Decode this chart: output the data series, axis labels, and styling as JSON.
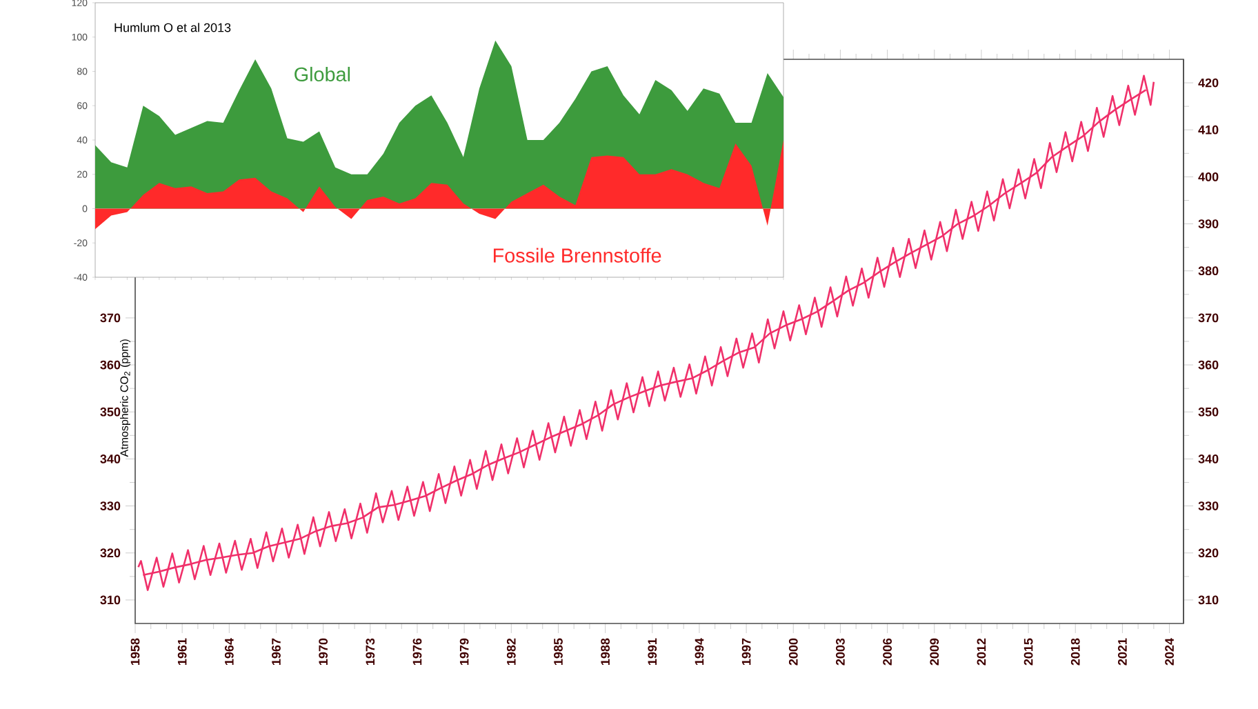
{
  "chart_data": [
    {
      "type": "line",
      "ylabel": "Atmospheric CO$_{2}$ (ppm)",
      "xlim": [
        1958,
        2024.9
      ],
      "xticks": [
        1958,
        1961,
        1964,
        1967,
        1970,
        1973,
        1976,
        1979,
        1982,
        1985,
        1988,
        1991,
        1994,
        1997,
        2000,
        2003,
        2006,
        2009,
        2012,
        2015,
        2018,
        2021,
        2024
      ],
      "ylim": [
        305,
        425
      ],
      "yticks": [
        310,
        320,
        330,
        340,
        350,
        360,
        370
      ],
      "y2lim": [
        305,
        425
      ],
      "y2ticks": [
        310,
        320,
        330,
        340,
        350,
        360,
        370,
        380,
        390,
        400,
        410,
        420
      ],
      "series": [
        {
          "color": "#f0306a",
          "x": [
            1958.2,
            1958.37,
            1958.8,
            1959.37,
            1959.8,
            1960.37,
            1960.8,
            1961.37,
            1961.8,
            1962.37,
            1962.8,
            1963.37,
            1963.8,
            1964.37,
            1964.8,
            1965.37,
            1965.8,
            1966.37,
            1966.8,
            1967.37,
            1967.8,
            1968.37,
            1968.8,
            1969.37,
            1969.8,
            1970.37,
            1970.8,
            1971.37,
            1971.8,
            1972.37,
            1972.8,
            1973.37,
            1973.8,
            1974.37,
            1974.8,
            1975.37,
            1975.8,
            1976.37,
            1976.8,
            1977.37,
            1977.8,
            1978.37,
            1978.8,
            1979.37,
            1979.8,
            1980.37,
            1980.8,
            1981.37,
            1981.8,
            1982.37,
            1982.8,
            1983.37,
            1983.8,
            1984.37,
            1984.8,
            1985.37,
            1985.8,
            1986.37,
            1986.8,
            1987.37,
            1987.8,
            1988.37,
            1988.8,
            1989.37,
            1989.8,
            1990.37,
            1990.8,
            1991.37,
            1991.8,
            1992.37,
            1992.8,
            1993.37,
            1993.8,
            1994.37,
            1994.8,
            1995.37,
            1995.8,
            1996.37,
            1996.8,
            1997.37,
            1997.8,
            1998.37,
            1998.8,
            1999.37,
            1999.8,
            2000.37,
            2000.8,
            2001.37,
            2001.8,
            2002.37,
            2002.8,
            2003.37,
            2003.8,
            2004.37,
            2004.8,
            2005.37,
            2005.8,
            2006.37,
            2006.8,
            2007.37,
            2007.8,
            2008.37,
            2008.8,
            2009.37,
            2009.8,
            2010.37,
            2010.8,
            2011.37,
            2011.8,
            2012.37,
            2012.8,
            2013.37,
            2013.8,
            2014.37,
            2014.8,
            2015.37,
            2015.8,
            2016.37,
            2016.8,
            2017.37,
            2017.8,
            2018.37,
            2018.8,
            2019.37,
            2019.8,
            2020.37,
            2020.8,
            2021.37,
            2021.8,
            2022.37,
            2022.8,
            2023.0
          ],
          "values": [
            317.0,
            318.3,
            312.1,
            319.0,
            312.8,
            319.9,
            313.7,
            320.6,
            314.4,
            321.5,
            315.3,
            322.0,
            315.8,
            322.6,
            316.4,
            323.0,
            316.8,
            324.4,
            318.2,
            325.2,
            319.0,
            326.0,
            319.8,
            327.6,
            321.4,
            328.7,
            322.5,
            329.3,
            323.1,
            330.5,
            324.3,
            332.7,
            326.5,
            333.2,
            327.0,
            334.1,
            327.9,
            335.1,
            328.9,
            336.8,
            330.6,
            338.4,
            332.2,
            339.8,
            333.6,
            341.7,
            335.5,
            343.1,
            336.9,
            344.4,
            338.2,
            346.0,
            339.8,
            347.6,
            341.4,
            349.0,
            342.8,
            350.4,
            344.2,
            352.2,
            346.0,
            354.6,
            348.4,
            356.1,
            349.9,
            357.4,
            351.2,
            358.6,
            352.4,
            359.4,
            353.2,
            360.1,
            353.9,
            361.8,
            355.6,
            363.8,
            357.6,
            365.6,
            359.4,
            366.7,
            360.5,
            369.7,
            363.5,
            371.4,
            365.2,
            372.7,
            366.5,
            374.3,
            368.1,
            376.5,
            370.3,
            378.8,
            372.6,
            380.5,
            374.3,
            382.8,
            376.6,
            384.9,
            378.7,
            386.8,
            380.6,
            388.6,
            382.4,
            390.4,
            384.2,
            393.0,
            386.8,
            394.7,
            388.5,
            396.9,
            390.7,
            399.5,
            393.3,
            401.6,
            395.4,
            403.8,
            397.6,
            407.2,
            401.0,
            409.5,
            403.3,
            411.7,
            405.5,
            414.7,
            408.5,
            417.2,
            411.0,
            419.4,
            413.2,
            421.5,
            415.3,
            420.2
          ]
        },
        {
          "color": "#f0306a",
          "x": [
            1958.5,
            1959.5,
            1960.5,
            1961.5,
            1962.5,
            1963.5,
            1964.5,
            1965.5,
            1966.5,
            1967.5,
            1968.5,
            1969.5,
            1970.5,
            1971.5,
            1972.5,
            1973.5,
            1974.5,
            1975.5,
            1976.5,
            1977.5,
            1978.5,
            1979.5,
            1980.5,
            1981.5,
            1982.5,
            1983.5,
            1984.5,
            1985.5,
            1986.5,
            1987.5,
            1988.5,
            1989.5,
            1990.5,
            1991.5,
            1992.5,
            1993.5,
            1994.5,
            1995.5,
            1996.5,
            1997.5,
            1998.5,
            1999.5,
            2000.5,
            2001.5,
            2002.5,
            2003.5,
            2004.5,
            2005.5,
            2006.5,
            2007.5,
            2008.5,
            2009.5,
            2010.5,
            2011.5,
            2012.5,
            2013.5,
            2014.5,
            2015.5,
            2016.5,
            2017.5,
            2018.5,
            2019.5,
            2020.5,
            2021.5,
            2022.5
          ],
          "values": [
            315.3,
            316.0,
            316.9,
            317.6,
            318.5,
            319.0,
            319.6,
            320.0,
            321.4,
            322.2,
            323.0,
            324.6,
            325.7,
            326.3,
            327.5,
            329.7,
            330.2,
            331.1,
            332.1,
            333.8,
            335.4,
            336.8,
            338.7,
            340.1,
            341.4,
            343.0,
            344.6,
            346.0,
            347.4,
            349.2,
            351.6,
            353.1,
            354.4,
            355.6,
            356.4,
            357.1,
            358.8,
            360.8,
            362.6,
            363.7,
            366.7,
            368.4,
            369.7,
            371.3,
            373.5,
            375.8,
            377.5,
            379.8,
            381.9,
            383.8,
            385.6,
            387.4,
            390.0,
            391.7,
            393.9,
            396.5,
            398.6,
            400.8,
            404.2,
            406.5,
            408.7,
            411.7,
            414.2,
            416.4,
            418.5
          ]
        }
      ]
    },
    {
      "type": "area",
      "annotations": [
        "Humlum O et al 2013"
      ],
      "categories": [
        null,
        null,
        null,
        null,
        null,
        null,
        null,
        null,
        null,
        null,
        null,
        null,
        null,
        null,
        null,
        null,
        null,
        null,
        null,
        null,
        null,
        null,
        null,
        null,
        null,
        null,
        null,
        null,
        null,
        null,
        null,
        null,
        null,
        null,
        null,
        null,
        null,
        null,
        null,
        null,
        null,
        null,
        null,
        null
      ],
      "ylim": [
        -40,
        120
      ],
      "yticks": [
        -40,
        -20,
        0,
        20,
        40,
        60,
        80,
        100,
        120
      ],
      "tick_labels": "y",
      "series": [
        {
          "name": "Global",
          "color": "#3d9b3d",
          "values": [
            37,
            27,
            24,
            60,
            54,
            43,
            47,
            51,
            50,
            69,
            87,
            70,
            41,
            39,
            45,
            24,
            20,
            20,
            32,
            50,
            60,
            66,
            50,
            30,
            70,
            98,
            83,
            40,
            40,
            50,
            64,
            80,
            83,
            66,
            55,
            75,
            69,
            57,
            70,
            67,
            50,
            50,
            79,
            65
          ]
        },
        {
          "name": "Fossile Brennstoffe",
          "color": "#ff2a2a",
          "values": [
            -12,
            -4,
            -2,
            8,
            15,
            12,
            13,
            9,
            10,
            17,
            18,
            10,
            6,
            -2,
            13,
            1,
            -6,
            5,
            7,
            3,
            6,
            15,
            14,
            3,
            -3,
            -6,
            4,
            9,
            14,
            7,
            2,
            30,
            31,
            30,
            20,
            20,
            23,
            20,
            15,
            12,
            38,
            25,
            -10,
            40
          ]
        }
      ]
    }
  ]
}
